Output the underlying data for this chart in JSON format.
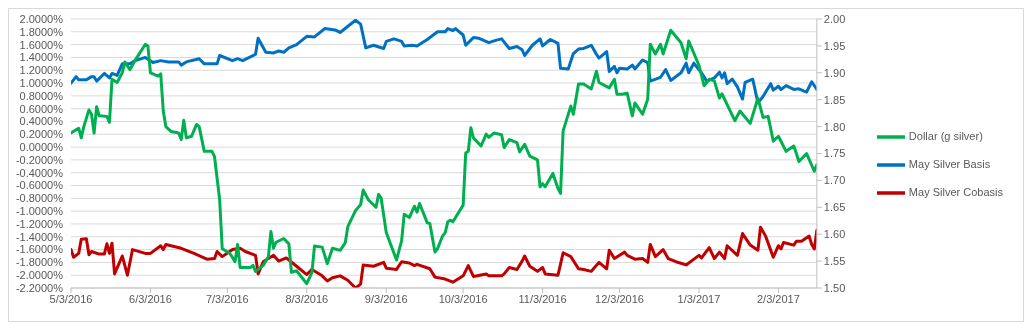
{
  "chart_data": {
    "type": "line",
    "legend": "right",
    "grid": "y",
    "marker": "none",
    "line_style": "solid",
    "xlim": [
      "2016-05-03",
      "2017-02-18"
    ],
    "xticks": [
      {
        "value": "2016-05-03",
        "label": "5/3/2016"
      },
      {
        "value": "2016-06-03",
        "label": "6/3/2016"
      },
      {
        "value": "2016-07-03",
        "label": "7/3/2016"
      },
      {
        "value": "2016-08-03",
        "label": "8/3/2016"
      },
      {
        "value": "2016-09-03",
        "label": "9/3/2016"
      },
      {
        "value": "2016-10-03",
        "label": "10/3/2016"
      },
      {
        "value": "2016-11-03",
        "label": "11/3/2016"
      },
      {
        "value": "2016-12-03",
        "label": "12/3/2016"
      },
      {
        "value": "2017-01-03",
        "label": "1/3/2017"
      },
      {
        "value": "2017-02-03",
        "label": "2/3/2017"
      }
    ],
    "ylim": [
      -2.2,
      2.0
    ],
    "yticks": [
      {
        "value": 2.0,
        "label": "2.0000%"
      },
      {
        "value": 1.8,
        "label": "1.8000%"
      },
      {
        "value": 1.6,
        "label": "1.6000%"
      },
      {
        "value": 1.4,
        "label": "1.4000%"
      },
      {
        "value": 1.2,
        "label": "1.2000%"
      },
      {
        "value": 1.0,
        "label": "1.0000%"
      },
      {
        "value": 0.8,
        "label": "0.8000%"
      },
      {
        "value": 0.6,
        "label": "0.6000%"
      },
      {
        "value": 0.4,
        "label": "0.4000%"
      },
      {
        "value": 0.2,
        "label": "0.2000%"
      },
      {
        "value": 0,
        "label": "0.0000%"
      },
      {
        "value": -0.2,
        "label": "-0.2000%"
      },
      {
        "value": -0.4,
        "label": "-0.4000%"
      },
      {
        "value": -0.6,
        "label": "-0.6000%"
      },
      {
        "value": -0.8,
        "label": "-0.8000%"
      },
      {
        "value": -1.0,
        "label": "-1.0000%"
      },
      {
        "value": -1.2,
        "label": "-1.2000%"
      },
      {
        "value": -1.4,
        "label": "-1.4000%"
      },
      {
        "value": -1.6,
        "label": "-1.6000%"
      },
      {
        "value": -1.8,
        "label": "-1.8000%"
      },
      {
        "value": -2.0,
        "label": "-2.0000%"
      },
      {
        "value": -2.2,
        "label": "-2.2000%"
      }
    ],
    "y2lim": [
      1.5,
      2.0
    ],
    "y2ticks": [
      {
        "value": 1.5,
        "label": "1.50"
      },
      {
        "value": 1.55,
        "label": "1.55"
      },
      {
        "value": 1.6,
        "label": "1.60"
      },
      {
        "value": 1.65,
        "label": "1.65"
      },
      {
        "value": 1.7,
        "label": "1.70"
      },
      {
        "value": 1.75,
        "label": "1.75"
      },
      {
        "value": 1.8,
        "label": "1.80"
      },
      {
        "value": 1.85,
        "label": "1.85"
      },
      {
        "value": 1.9,
        "label": "1.90"
      },
      {
        "value": 1.95,
        "label": "1.95"
      },
      {
        "value": 2.0,
        "label": "2.00"
      }
    ],
    "series": [
      {
        "name": "May Silver Basis",
        "color": "#0070c0",
        "x": [
          "2016-05-03",
          "2016-05-05",
          "2016-05-06",
          "2016-05-09",
          "2016-05-11",
          "2016-05-12",
          "2016-05-13",
          "2016-05-16",
          "2016-05-18",
          "2016-05-19",
          "2016-05-21",
          "2016-05-23",
          "2016-05-26",
          "2016-05-28",
          "2016-06-01",
          "2016-06-04",
          "2016-06-07",
          "2016-06-10",
          "2016-06-14",
          "2016-06-15",
          "2016-06-17",
          "2016-06-22",
          "2016-06-24",
          "2016-06-29",
          "2016-06-30",
          "2016-07-05",
          "2016-07-07",
          "2016-07-09",
          "2016-07-14",
          "2016-07-15",
          "2016-07-18",
          "2016-07-21",
          "2016-07-23",
          "2016-07-25",
          "2016-07-27",
          "2016-07-30",
          "2016-08-03",
          "2016-08-06",
          "2016-08-10",
          "2016-08-14",
          "2016-08-16",
          "2016-08-22",
          "2016-08-24",
          "2016-08-26",
          "2016-08-29",
          "2016-09-02",
          "2016-09-03",
          "2016-09-06",
          "2016-09-09",
          "2016-09-10",
          "2016-09-13",
          "2016-09-15",
          "2016-09-19",
          "2016-09-23",
          "2016-09-26",
          "2016-09-27",
          "2016-09-29",
          "2016-09-30",
          "2016-10-03",
          "2016-10-04",
          "2016-10-07",
          "2016-10-09",
          "2016-10-13",
          "2016-10-16",
          "2016-10-18",
          "2016-10-21",
          "2016-10-24",
          "2016-10-26",
          "2016-10-27",
          "2016-10-30",
          "2016-11-02",
          "2016-11-03",
          "2016-11-06",
          "2016-11-09",
          "2016-11-10",
          "2016-11-13",
          "2016-11-15",
          "2016-11-17",
          "2016-11-19",
          "2016-11-22",
          "2016-11-24",
          "2016-11-25",
          "2016-11-28",
          "2016-11-29",
          "2016-12-01",
          "2016-12-02",
          "2016-12-03",
          "2016-12-06",
          "2016-12-08",
          "2016-12-09",
          "2016-12-12",
          "2016-12-14",
          "2016-12-15",
          "2016-12-19",
          "2016-12-21",
          "2016-12-23",
          "2016-12-27",
          "2016-12-29",
          "2016-12-30",
          "2017-01-01",
          "2017-01-04",
          "2017-01-06",
          "2017-01-09",
          "2017-01-11",
          "2017-01-12",
          "2017-01-13",
          "2017-01-14",
          "2017-01-16",
          "2017-01-18",
          "2017-01-20",
          "2017-01-21",
          "2017-01-24",
          "2017-01-26",
          "2017-01-28",
          "2017-01-31",
          "2017-02-01",
          "2017-02-03",
          "2017-02-04",
          "2017-02-06",
          "2017-02-09",
          "2017-02-11",
          "2017-02-14",
          "2017-02-16",
          "2017-02-18"
        ],
        "values": [
          1.0,
          1.1,
          1.05,
          1.05,
          1.1,
          1.1,
          1.03,
          1.15,
          1.08,
          1.15,
          1.12,
          1.3,
          1.3,
          1.35,
          1.4,
          1.32,
          1.35,
          1.33,
          1.33,
          1.28,
          1.33,
          1.38,
          1.3,
          1.3,
          1.43,
          1.35,
          1.38,
          1.35,
          1.45,
          1.7,
          1.48,
          1.47,
          1.5,
          1.48,
          1.55,
          1.6,
          1.73,
          1.72,
          1.85,
          1.83,
          1.79,
          1.98,
          1.92,
          1.55,
          1.59,
          1.54,
          1.65,
          1.69,
          1.65,
          1.58,
          1.59,
          1.58,
          1.68,
          1.8,
          1.8,
          1.85,
          1.82,
          1.85,
          1.75,
          1.59,
          1.71,
          1.7,
          1.63,
          1.67,
          1.69,
          1.54,
          1.57,
          1.52,
          1.43,
          1.59,
          1.69,
          1.58,
          1.68,
          1.62,
          1.23,
          1.22,
          1.46,
          1.53,
          1.54,
          1.59,
          1.45,
          1.39,
          1.49,
          1.18,
          1.26,
          1.16,
          1.23,
          1.22,
          1.28,
          1.22,
          1.36,
          1.32,
          1.03,
          1.09,
          1.21,
          1.04,
          1.16,
          1.31,
          1.16,
          1.31,
          1.16,
          1.03,
          1.08,
          1.17,
          1.08,
          1.16,
          0.99,
          1.06,
          0.94,
          0.75,
          1.01,
          1.06,
          0.69,
          0.79,
          0.99,
          0.89,
          0.95,
          0.9,
          0.96,
          0.9,
          0.91,
          0.86,
          1.02,
          0.9
        ]
      },
      {
        "name": "May Silver Cobasis",
        "color": "#c00000",
        "x": [
          "2016-05-03",
          "2016-05-04",
          "2016-05-06",
          "2016-05-07",
          "2016-05-09",
          "2016-05-10",
          "2016-05-11",
          "2016-05-14",
          "2016-05-16",
          "2016-05-17",
          "2016-05-18",
          "2016-05-19",
          "2016-05-20",
          "2016-05-23",
          "2016-05-25",
          "2016-05-27",
          "2016-06-01",
          "2016-06-03",
          "2016-06-07",
          "2016-06-08",
          "2016-06-09",
          "2016-06-15",
          "2016-06-20",
          "2016-06-25",
          "2016-06-28",
          "2016-06-29",
          "2016-07-01",
          "2016-07-05",
          "2016-07-08",
          "2016-07-10",
          "2016-07-14",
          "2016-07-15",
          "2016-07-17",
          "2016-07-21",
          "2016-07-23",
          "2016-07-26",
          "2016-07-30",
          "2016-08-03",
          "2016-08-05",
          "2016-08-09",
          "2016-08-11",
          "2016-08-13",
          "2016-08-16",
          "2016-08-19",
          "2016-08-22",
          "2016-08-24",
          "2016-08-25",
          "2016-08-29",
          "2016-09-02",
          "2016-09-03",
          "2016-09-07",
          "2016-09-09",
          "2016-09-12",
          "2016-09-14",
          "2016-09-15",
          "2016-09-20",
          "2016-09-22",
          "2016-09-26",
          "2016-09-29",
          "2016-10-03",
          "2016-10-05",
          "2016-10-07",
          "2016-10-12",
          "2016-10-13",
          "2016-10-18",
          "2016-10-19",
          "2016-10-21",
          "2016-10-24",
          "2016-10-26",
          "2016-10-27",
          "2016-10-29",
          "2016-11-01",
          "2016-11-03",
          "2016-11-04",
          "2016-11-09",
          "2016-11-11",
          "2016-11-14",
          "2016-11-17",
          "2016-11-19",
          "2016-11-22",
          "2016-11-25",
          "2016-11-28",
          "2016-11-29",
          "2016-12-01",
          "2016-12-05",
          "2016-12-06",
          "2016-12-09",
          "2016-12-12",
          "2016-12-14",
          "2016-12-15",
          "2016-12-17",
          "2016-12-20",
          "2016-12-22",
          "2016-12-25",
          "2016-12-29",
          "2017-01-03",
          "2017-01-04",
          "2017-01-07",
          "2017-01-09",
          "2017-01-11",
          "2017-01-13",
          "2017-01-14",
          "2017-01-18",
          "2017-01-20",
          "2017-01-23",
          "2017-01-26",
          "2017-01-27",
          "2017-01-29",
          "2017-02-01",
          "2017-02-03",
          "2017-02-04",
          "2017-02-05",
          "2017-02-09",
          "2017-02-10",
          "2017-02-12",
          "2017-02-15",
          "2017-02-16",
          "2017-02-17",
          "2017-02-18"
        ],
        "values": [
          -1.6,
          -1.72,
          -1.66,
          -1.44,
          -1.43,
          -1.68,
          -1.63,
          -1.67,
          -1.67,
          -1.51,
          -1.66,
          -1.5,
          -1.98,
          -1.7,
          -2.0,
          -1.6,
          -1.66,
          -1.66,
          -1.54,
          -1.6,
          -1.52,
          -1.58,
          -1.66,
          -1.75,
          -1.74,
          -1.63,
          -1.71,
          -1.6,
          -1.58,
          -1.63,
          -1.69,
          -1.98,
          -1.79,
          -1.69,
          -1.78,
          -1.73,
          -1.86,
          -1.99,
          -1.91,
          -2.01,
          -2.09,
          -2.04,
          -2.01,
          -2.08,
          -2.2,
          -2.14,
          -1.84,
          -1.86,
          -1.8,
          -1.89,
          -1.91,
          -1.79,
          -1.81,
          -1.85,
          -1.83,
          -1.9,
          -2.03,
          -2.06,
          -2.11,
          -2.01,
          -1.85,
          -2.02,
          -1.98,
          -2.01,
          -2.01,
          -1.98,
          -1.88,
          -1.91,
          -1.78,
          -1.7,
          -1.86,
          -1.94,
          -1.88,
          -1.98,
          -2.0,
          -1.65,
          -1.71,
          -1.9,
          -1.91,
          -1.94,
          -1.8,
          -1.9,
          -1.61,
          -1.74,
          -1.64,
          -1.69,
          -1.75,
          -1.74,
          -1.8,
          -1.52,
          -1.71,
          -1.6,
          -1.74,
          -1.79,
          -1.84,
          -1.69,
          -1.73,
          -1.57,
          -1.74,
          -1.64,
          -1.74,
          -1.54,
          -1.69,
          -1.35,
          -1.53,
          -1.61,
          -1.25,
          -1.39,
          -1.72,
          -1.54,
          -1.59,
          -1.49,
          -1.53,
          -1.47,
          -1.47,
          -1.39,
          -1.52,
          -1.59,
          -1.3
        ]
      },
      {
        "name": "Dollar (g silver)",
        "color": "#00b050",
        "axis": "y2",
        "x": [
          "2016-05-03",
          "2016-05-05",
          "2016-05-06",
          "2016-05-07",
          "2016-05-08",
          "2016-05-10",
          "2016-05-11",
          "2016-05-12",
          "2016-05-13",
          "2016-05-14",
          "2016-05-17",
          "2016-05-18",
          "2016-05-19",
          "2016-05-21",
          "2016-05-23",
          "2016-05-24",
          "2016-05-26",
          "2016-05-28",
          "2016-06-01",
          "2016-06-02",
          "2016-06-03",
          "2016-06-06",
          "2016-06-07",
          "2016-06-08",
          "2016-06-09",
          "2016-06-11",
          "2016-06-14",
          "2016-06-15",
          "2016-06-16",
          "2016-06-17",
          "2016-06-19",
          "2016-06-21",
          "2016-06-22",
          "2016-06-24",
          "2016-06-27",
          "2016-06-28",
          "2016-06-30",
          "2016-07-01",
          "2016-07-04",
          "2016-07-06",
          "2016-07-07",
          "2016-07-08",
          "2016-07-12",
          "2016-07-13",
          "2016-07-14",
          "2016-07-17",
          "2016-07-19",
          "2016-07-20",
          "2016-07-21",
          "2016-07-22",
          "2016-07-25",
          "2016-07-27",
          "2016-07-28",
          "2016-07-30",
          "2016-08-01",
          "2016-08-03",
          "2016-08-05",
          "2016-08-06",
          "2016-08-09",
          "2016-08-11",
          "2016-08-13",
          "2016-08-16",
          "2016-08-18",
          "2016-08-19",
          "2016-08-22",
          "2016-08-24",
          "2016-08-25",
          "2016-08-27",
          "2016-08-30",
          "2016-08-31",
          "2016-09-01",
          "2016-09-03",
          "2016-09-07",
          "2016-09-09",
          "2016-09-10",
          "2016-09-12",
          "2016-09-14",
          "2016-09-15",
          "2016-09-16",
          "2016-09-19",
          "2016-09-20",
          "2016-09-22",
          "2016-09-23",
          "2016-09-25",
          "2016-09-26",
          "2016-09-27",
          "2016-09-28",
          "2016-09-29",
          "2016-10-03",
          "2016-10-04",
          "2016-10-05",
          "2016-10-06",
          "2016-10-07",
          "2016-10-10",
          "2016-10-12",
          "2016-10-13",
          "2016-10-15",
          "2016-10-18",
          "2016-10-19",
          "2016-10-21",
          "2016-10-24",
          "2016-10-25",
          "2016-10-27",
          "2016-10-29",
          "2016-11-01",
          "2016-11-02",
          "2016-11-03",
          "2016-11-04",
          "2016-11-07",
          "2016-11-09",
          "2016-11-10",
          "2016-11-11",
          "2016-11-14",
          "2016-11-15",
          "2016-11-17",
          "2016-11-19",
          "2016-11-22",
          "2016-11-24",
          "2016-11-25",
          "2016-11-29",
          "2016-12-01",
          "2016-12-02",
          "2016-12-04",
          "2016-12-06",
          "2016-12-08",
          "2016-12-09",
          "2016-12-12",
          "2016-12-14",
          "2016-12-15",
          "2016-12-17",
          "2016-12-19",
          "2016-12-20",
          "2016-12-23",
          "2016-12-27",
          "2016-12-29",
          "2016-12-30",
          "2017-01-03",
          "2017-01-05",
          "2017-01-07",
          "2017-01-09",
          "2017-01-11",
          "2017-01-12",
          "2017-01-17",
          "2017-01-19",
          "2017-01-23",
          "2017-01-26",
          "2017-01-28",
          "2017-01-30",
          "2017-02-01",
          "2017-02-03",
          "2017-02-06",
          "2017-02-09",
          "2017-02-10",
          "2017-02-11",
          "2017-02-14",
          "2017-02-17",
          "2017-02-18"
        ],
        "values": [
          1.788,
          1.794,
          1.797,
          1.779,
          1.8,
          1.831,
          1.823,
          1.788,
          1.837,
          1.82,
          1.819,
          1.808,
          1.888,
          1.882,
          1.9,
          1.92,
          1.906,
          1.923,
          1.953,
          1.95,
          1.9,
          1.894,
          1.898,
          1.829,
          1.8,
          1.791,
          1.788,
          1.776,
          1.812,
          1.779,
          1.782,
          1.804,
          1.8,
          1.754,
          1.754,
          1.744,
          1.664,
          1.573,
          1.564,
          1.549,
          1.581,
          1.538,
          1.538,
          1.542,
          1.531,
          1.542,
          1.558,
          1.605,
          1.574,
          1.585,
          1.592,
          1.582,
          1.529,
          1.532,
          1.52,
          1.508,
          1.529,
          1.578,
          1.576,
          1.545,
          1.574,
          1.57,
          1.584,
          1.614,
          1.644,
          1.655,
          1.682,
          1.664,
          1.65,
          1.674,
          1.667,
          1.603,
          1.552,
          1.588,
          1.637,
          1.631,
          1.652,
          1.641,
          1.657,
          1.621,
          1.62,
          1.567,
          1.573,
          1.597,
          1.603,
          1.623,
          1.626,
          1.623,
          1.654,
          1.751,
          1.754,
          1.798,
          1.779,
          1.764,
          1.786,
          1.78,
          1.788,
          1.785,
          1.761,
          1.776,
          1.77,
          1.753,
          1.767,
          1.745,
          1.738,
          1.688,
          1.694,
          1.688,
          1.713,
          1.685,
          1.676,
          1.792,
          1.838,
          1.823,
          1.879,
          1.879,
          1.87,
          1.903,
          1.882,
          1.872,
          1.888,
          1.86,
          1.86,
          1.862,
          1.82,
          1.844,
          1.823,
          1.851,
          1.953,
          1.935,
          1.953,
          1.935,
          1.979,
          1.956,
          1.926,
          1.959,
          1.914,
          1.876,
          1.888,
          1.885,
          1.853,
          1.861,
          1.811,
          1.829,
          1.806,
          1.853,
          1.817,
          1.819,
          1.773,
          1.782,
          1.754,
          1.764,
          1.75,
          1.735,
          1.75,
          1.717,
          1.729
        ]
      }
    ]
  }
}
